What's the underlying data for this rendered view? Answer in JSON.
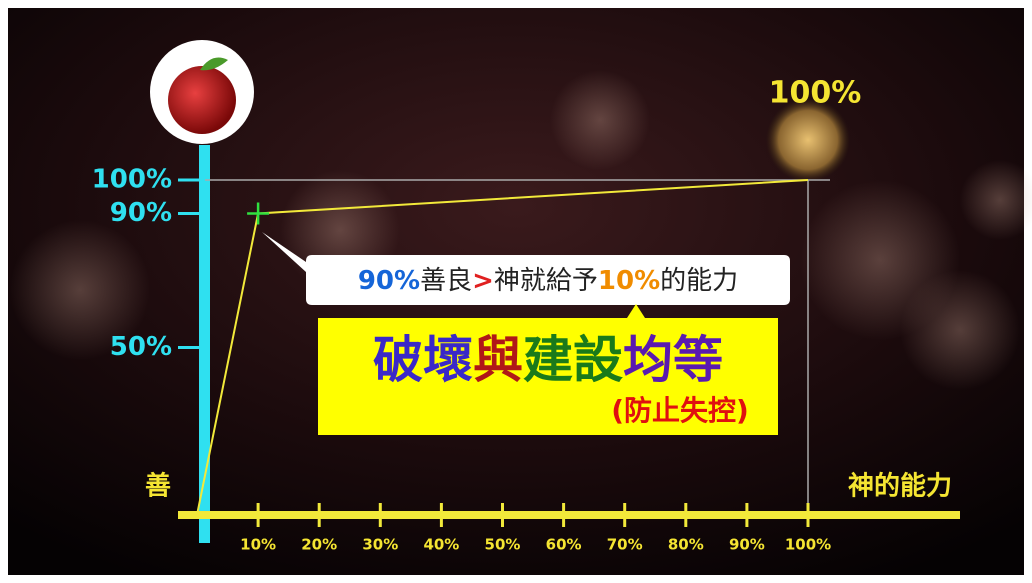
{
  "chart_data": {
    "type": "line",
    "x": [
      0,
      10,
      100
    ],
    "series": [
      {
        "name": "善",
        "color": "#f2e93a",
        "values": [
          0,
          90,
          100
        ]
      }
    ],
    "xlim": [
      0,
      100
    ],
    "ylim": [
      0,
      100
    ],
    "xticks": [
      {
        "value": 10,
        "label": "10%"
      },
      {
        "value": 20,
        "label": "20%"
      },
      {
        "value": 30,
        "label": "30%"
      },
      {
        "value": 40,
        "label": "40%"
      },
      {
        "value": 50,
        "label": "50%"
      },
      {
        "value": 60,
        "label": "60%"
      },
      {
        "value": 70,
        "label": "70%"
      },
      {
        "value": 80,
        "label": "80%"
      },
      {
        "value": 90,
        "label": "90%"
      },
      {
        "value": 100,
        "label": "100%"
      }
    ],
    "yticks": [
      {
        "value": 50,
        "label": "50%"
      },
      {
        "value": 90,
        "label": "90%"
      },
      {
        "value": 100,
        "label": "100%"
      }
    ],
    "ylabel": "善",
    "xlabel": "神的能力",
    "top_label": "100%",
    "callout": [
      "90%",
      "善良",
      ">",
      "神就給予",
      "10%",
      "的能力"
    ],
    "headline": [
      "破壞",
      "與",
      "建設",
      "均等"
    ],
    "subline": "(防止失控)"
  }
}
